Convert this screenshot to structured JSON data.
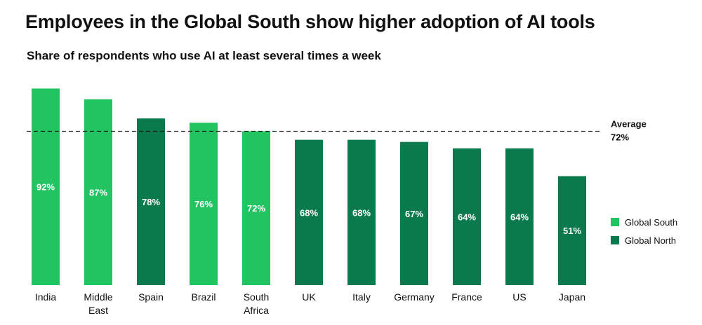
{
  "title": "Employees in the Global South show higher adoption of AI tools",
  "subtitle": "Share of respondents who use AI at least several times a week",
  "colors": {
    "global_south": "#22c462",
    "global_north": "#0a7a4d"
  },
  "chart_data": {
    "type": "bar",
    "categories": [
      [
        "India"
      ],
      [
        "Middle",
        "East"
      ],
      [
        "Spain"
      ],
      [
        "Brazil"
      ],
      [
        "South",
        "Africa"
      ],
      [
        "UK"
      ],
      [
        "Italy"
      ],
      [
        "Germany"
      ],
      [
        "France"
      ],
      [
        "US"
      ],
      [
        "Japan"
      ]
    ],
    "values": [
      92,
      87,
      78,
      76,
      72,
      68,
      68,
      67,
      64,
      64,
      51
    ],
    "data_labels": [
      "92%",
      "87%",
      "78%",
      "76%",
      "72%",
      "68%",
      "68%",
      "67%",
      "64%",
      "64%",
      "51%"
    ],
    "groups": [
      "global_south",
      "global_south",
      "global_north",
      "global_south",
      "global_south",
      "global_north",
      "global_north",
      "global_north",
      "global_north",
      "global_north",
      "global_north"
    ],
    "ylim": [
      0,
      100
    ],
    "average": {
      "value": 72,
      "label_line1": "Average",
      "label_line2": "72%"
    },
    "legend": [
      {
        "key": "global_south",
        "label": "Global South"
      },
      {
        "key": "global_north",
        "label": "Global North"
      }
    ],
    "legend_position": "right"
  }
}
